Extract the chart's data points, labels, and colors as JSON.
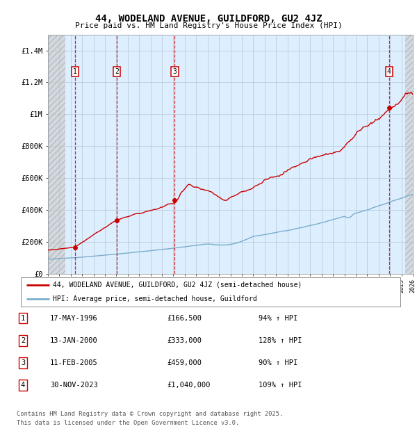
{
  "title": "44, WODELAND AVENUE, GUILDFORD, GU2 4JZ",
  "subtitle": "Price paid vs. HM Land Registry's House Price Index (HPI)",
  "legend_line1": "44, WODELAND AVENUE, GUILDFORD, GU2 4JZ (semi-detached house)",
  "legend_line2": "HPI: Average price, semi-detached house, Guildford",
  "footer_line1": "Contains HM Land Registry data © Crown copyright and database right 2025.",
  "footer_line2": "This data is licensed under the Open Government Licence v3.0.",
  "sale_color": "#cc0000",
  "hpi_color": "#7aadcc",
  "ylim": [
    0,
    1500000
  ],
  "yticks": [
    0,
    200000,
    400000,
    600000,
    800000,
    1000000,
    1200000,
    1400000
  ],
  "ytick_labels": [
    "£0",
    "£200K",
    "£400K",
    "£600K",
    "£800K",
    "£1M",
    "£1.2M",
    "£1.4M"
  ],
  "sale_points": [
    {
      "year": 1996.38,
      "price": 166500,
      "label": "1"
    },
    {
      "year": 2000.04,
      "price": 333000,
      "label": "2"
    },
    {
      "year": 2005.12,
      "price": 459000,
      "label": "3"
    },
    {
      "year": 2023.92,
      "price": 1040000,
      "label": "4"
    }
  ],
  "table_rows": [
    [
      "1",
      "17-MAY-1996",
      "£166,500",
      "94% ↑ HPI"
    ],
    [
      "2",
      "13-JAN-2000",
      "£333,000",
      "128% ↑ HPI"
    ],
    [
      "3",
      "11-FEB-2005",
      "£459,000",
      "90% ↑ HPI"
    ],
    [
      "4",
      "30-NOV-2023",
      "£1,040,000",
      "109% ↑ HPI"
    ]
  ],
  "xmin": 1994,
  "xmax": 2026,
  "background_color": "#ffffff",
  "plot_bg_color": "#ddeeff",
  "grid_color": "#aabbcc",
  "vline_color": "#cc0000",
  "hatch_left_end": 1995.5,
  "hatch_right_start": 2025.3
}
